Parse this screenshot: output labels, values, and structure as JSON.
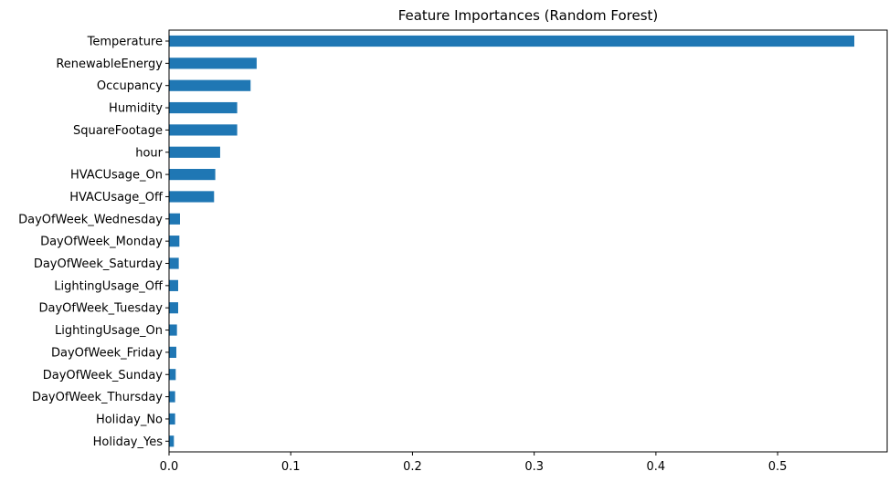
{
  "chart_data": {
    "type": "bar",
    "orientation": "horizontal",
    "title": "Feature Importances (Random Forest)",
    "xlabel": "",
    "ylabel": "",
    "categories": [
      "Temperature",
      "RenewableEnergy",
      "Occupancy",
      "Humidity",
      "SquareFootage",
      "hour",
      "HVACUsage_On",
      "HVACUsage_Off",
      "DayOfWeek_Wednesday",
      "DayOfWeek_Monday",
      "DayOfWeek_Saturday",
      "LightingUsage_Off",
      "DayOfWeek_Tuesday",
      "LightingUsage_On",
      "DayOfWeek_Friday",
      "DayOfWeek_Sunday",
      "DayOfWeek_Thursday",
      "Holiday_No",
      "Holiday_Yes"
    ],
    "values": [
      0.563,
      0.072,
      0.067,
      0.056,
      0.056,
      0.042,
      0.038,
      0.037,
      0.009,
      0.0085,
      0.008,
      0.0075,
      0.0075,
      0.0065,
      0.006,
      0.0055,
      0.005,
      0.005,
      0.004
    ],
    "xlim": [
      0,
      0.59
    ],
    "xticks": [
      0.0,
      0.1,
      0.2,
      0.3,
      0.4,
      0.5
    ],
    "xtick_labels": [
      "0.0",
      "0.1",
      "0.2",
      "0.3",
      "0.4",
      "0.5"
    ],
    "grid": false,
    "legend": "none",
    "colors": {
      "bar": "#1f77b4",
      "axis": "#000000",
      "background": "#ffffff"
    }
  }
}
